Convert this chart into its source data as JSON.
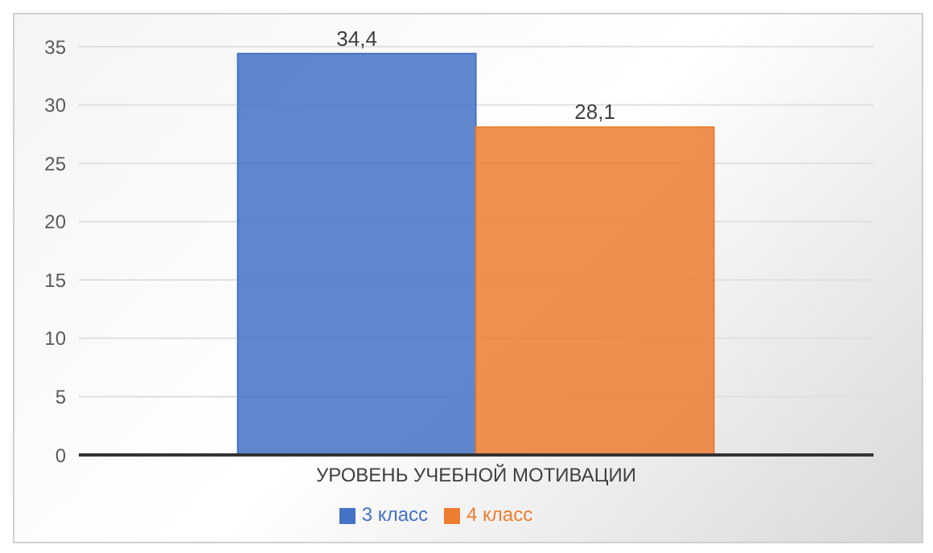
{
  "chart_data": {
    "type": "bar",
    "categories": [
      "УРОВЕНЬ УЧЕБНОЙ МОТИВАЦИИ"
    ],
    "series": [
      {
        "name": "3 класс",
        "color": "#4472c4",
        "values": [
          34.4
        ],
        "value_labels": [
          "34,4"
        ]
      },
      {
        "name": "4 класс",
        "color": "#ed7d31",
        "values": [
          28.1
        ],
        "value_labels": [
          "28,1"
        ]
      }
    ],
    "ylim": [
      0,
      35
    ],
    "yticks": [
      0,
      5,
      10,
      15,
      20,
      25,
      30,
      35
    ],
    "grid": "y",
    "legend": "bottom"
  }
}
